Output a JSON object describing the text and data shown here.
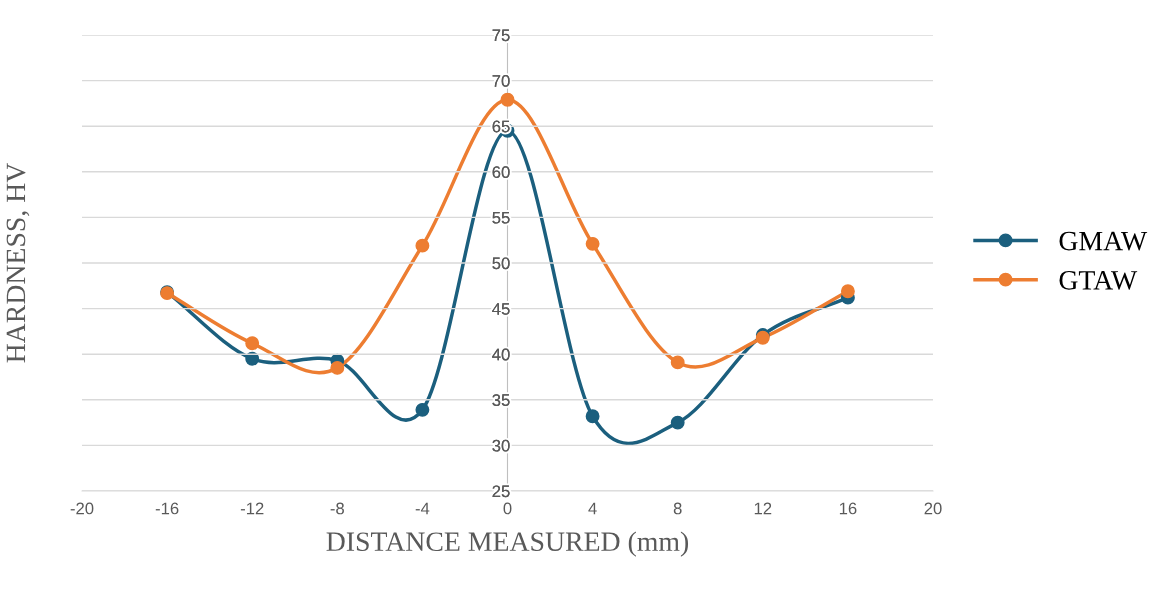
{
  "chart_data": {
    "type": "line",
    "xlabel": "DISTANCE MEASURED (mm)",
    "ylabel": "HARDNESS, HV",
    "x": [
      -16,
      -12,
      -8,
      -4,
      0,
      4,
      8,
      12,
      16
    ],
    "series": [
      {
        "name": "GMAW",
        "color": "#1b5f7e",
        "values": [
          46.8,
          39.5,
          39.3,
          33.9,
          64.5,
          33.2,
          32.5,
          42.1,
          46.2
        ]
      },
      {
        "name": "GTAW",
        "color": "#ed7d31",
        "values": [
          46.7,
          41.2,
          38.5,
          51.9,
          67.9,
          52.1,
          39.1,
          41.8,
          46.9
        ]
      }
    ],
    "xlim": [
      -20,
      20
    ],
    "xticks": [
      -20,
      -16,
      -12,
      -8,
      -4,
      0,
      4,
      8,
      12,
      16,
      20
    ],
    "ylim": [
      25,
      75
    ],
    "yticks": [
      25,
      30,
      35,
      40,
      45,
      50,
      55,
      60,
      65,
      70,
      75
    ],
    "grid": "y",
    "legend": "right",
    "marker": "circle",
    "line_style": "solid"
  }
}
